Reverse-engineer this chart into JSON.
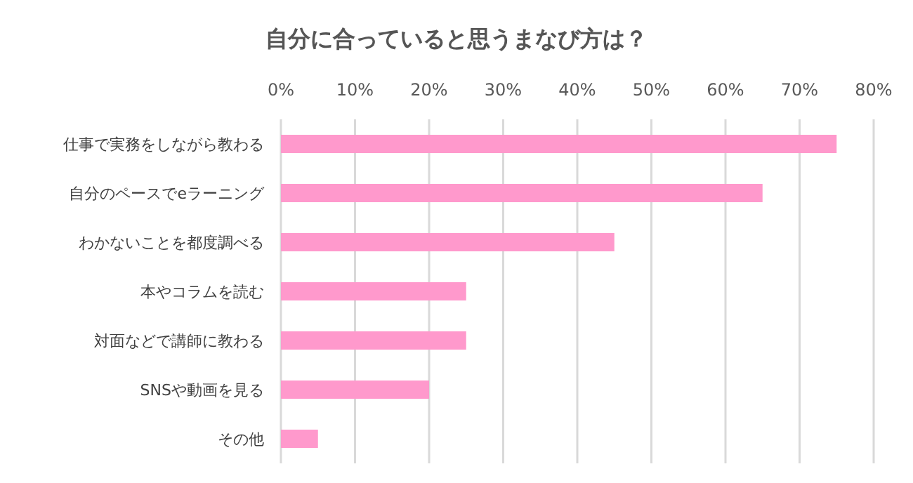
{
  "chart_data": {
    "type": "bar",
    "orientation": "horizontal",
    "title": "自分に合っていると思うまなび方は？",
    "categories": [
      "仕事で実務をしながら教わる",
      "自分のペースでeラーニング",
      "わかないことを都度調べる",
      "本やコラムを読む",
      "対面などで講師に教わる",
      "SNSや動画を見る",
      "その他"
    ],
    "values": [
      75,
      65,
      45,
      25,
      25,
      20,
      5
    ],
    "color": "#ff99cc",
    "xlim": [
      0,
      80
    ],
    "xticks": [
      {
        "value": 0,
        "label": "0%"
      },
      {
        "value": 10,
        "label": "10%"
      },
      {
        "value": 20,
        "label": "20%"
      },
      {
        "value": 30,
        "label": "30%"
      },
      {
        "value": 40,
        "label": "40%"
      },
      {
        "value": 50,
        "label": "50%"
      },
      {
        "value": 60,
        "label": "60%"
      },
      {
        "value": 70,
        "label": "70%"
      },
      {
        "value": 80,
        "label": "80%"
      }
    ],
    "grid": "x"
  }
}
